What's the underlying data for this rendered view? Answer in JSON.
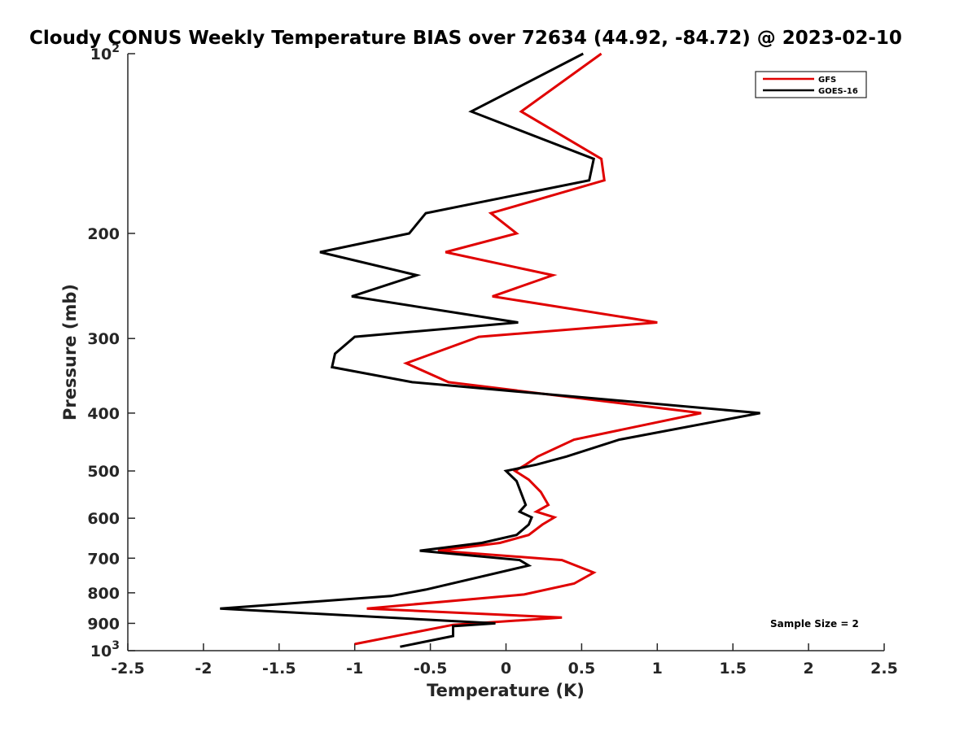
{
  "chart_data": {
    "type": "line",
    "title": "Cloudy CONUS Weekly Temperature BIAS over 72634 (44.92, -84.72) @ 2023-02-10",
    "xlabel": "Temperature (K)",
    "ylabel": "Pressure (mb)",
    "xlim": [
      -2.5,
      2.5
    ],
    "ylim": [
      100,
      1000
    ],
    "yscale": "log",
    "y_reversed": true,
    "x_ticks": [
      "-2.5",
      "-2",
      "-1.5",
      "-1",
      "-0.5",
      "0",
      "0.5",
      "1",
      "1.5",
      "2",
      "2.5"
    ],
    "y_ticks": [
      {
        "value": 100,
        "base": "10",
        "exp": "2"
      },
      {
        "value": 200,
        "label": "200"
      },
      {
        "value": 300,
        "label": "300"
      },
      {
        "value": 400,
        "label": "400"
      },
      {
        "value": 500,
        "label": "500"
      },
      {
        "value": 600,
        "label": "600"
      },
      {
        "value": 700,
        "label": "700"
      },
      {
        "value": 800,
        "label": "800"
      },
      {
        "value": 900,
        "label": "900"
      },
      {
        "value": 1000,
        "base": "10",
        "exp": "3"
      }
    ],
    "grid": false,
    "legend_position": "top-right",
    "annotation": "Sample Size = 2",
    "series": [
      {
        "name": "GFS",
        "color": "#e00000",
        "points": [
          [
            0.63,
            100
          ],
          [
            0.1,
            125
          ],
          [
            0.63,
            150
          ],
          [
            0.65,
            163
          ],
          [
            -0.1,
            185
          ],
          [
            0.07,
            200
          ],
          [
            -0.4,
            215
          ],
          [
            0.31,
            235
          ],
          [
            -0.09,
            255
          ],
          [
            1.0,
            282
          ],
          [
            -0.18,
            298
          ],
          [
            -0.66,
            330
          ],
          [
            -0.38,
            355
          ],
          [
            1.29,
            400
          ],
          [
            0.45,
            443
          ],
          [
            0.21,
            473
          ],
          [
            0.13,
            488
          ],
          [
            0.06,
            500
          ],
          [
            0.15,
            517
          ],
          [
            0.23,
            542
          ],
          [
            0.28,
            570
          ],
          [
            0.2,
            585
          ],
          [
            0.32,
            598
          ],
          [
            0.24,
            615
          ],
          [
            0.15,
            640
          ],
          [
            -0.04,
            660
          ],
          [
            -0.45,
            680
          ],
          [
            0.37,
            705
          ],
          [
            0.58,
            740
          ],
          [
            0.45,
            772
          ],
          [
            0.12,
            805
          ],
          [
            -0.92,
            850
          ],
          [
            0.37,
            880
          ],
          [
            -0.35,
            905
          ],
          [
            -1.0,
            975
          ]
        ]
      },
      {
        "name": "GOES-16",
        "color": "#000000",
        "points": [
          [
            0.51,
            100
          ],
          [
            -0.23,
            125
          ],
          [
            0.58,
            150
          ],
          [
            0.55,
            163
          ],
          [
            -0.53,
            185
          ],
          [
            -0.64,
            200
          ],
          [
            -1.23,
            215
          ],
          [
            -0.59,
            235
          ],
          [
            -1.02,
            255
          ],
          [
            0.08,
            282
          ],
          [
            -1.0,
            298
          ],
          [
            -1.13,
            318
          ],
          [
            -1.15,
            335
          ],
          [
            -0.62,
            355
          ],
          [
            1.68,
            400
          ],
          [
            0.75,
            443
          ],
          [
            0.4,
            473
          ],
          [
            0.2,
            488
          ],
          [
            0.0,
            500
          ],
          [
            0.07,
            520
          ],
          [
            0.13,
            570
          ],
          [
            0.09,
            585
          ],
          [
            0.17,
            598
          ],
          [
            0.15,
            615
          ],
          [
            0.07,
            640
          ],
          [
            -0.16,
            660
          ],
          [
            -0.57,
            680
          ],
          [
            0.09,
            705
          ],
          [
            0.15,
            720
          ],
          [
            -0.53,
            790
          ],
          [
            -0.76,
            810
          ],
          [
            -1.89,
            850
          ],
          [
            -0.07,
            900
          ],
          [
            -0.35,
            910
          ],
          [
            -0.35,
            945
          ],
          [
            -0.7,
            985
          ]
        ]
      }
    ]
  }
}
